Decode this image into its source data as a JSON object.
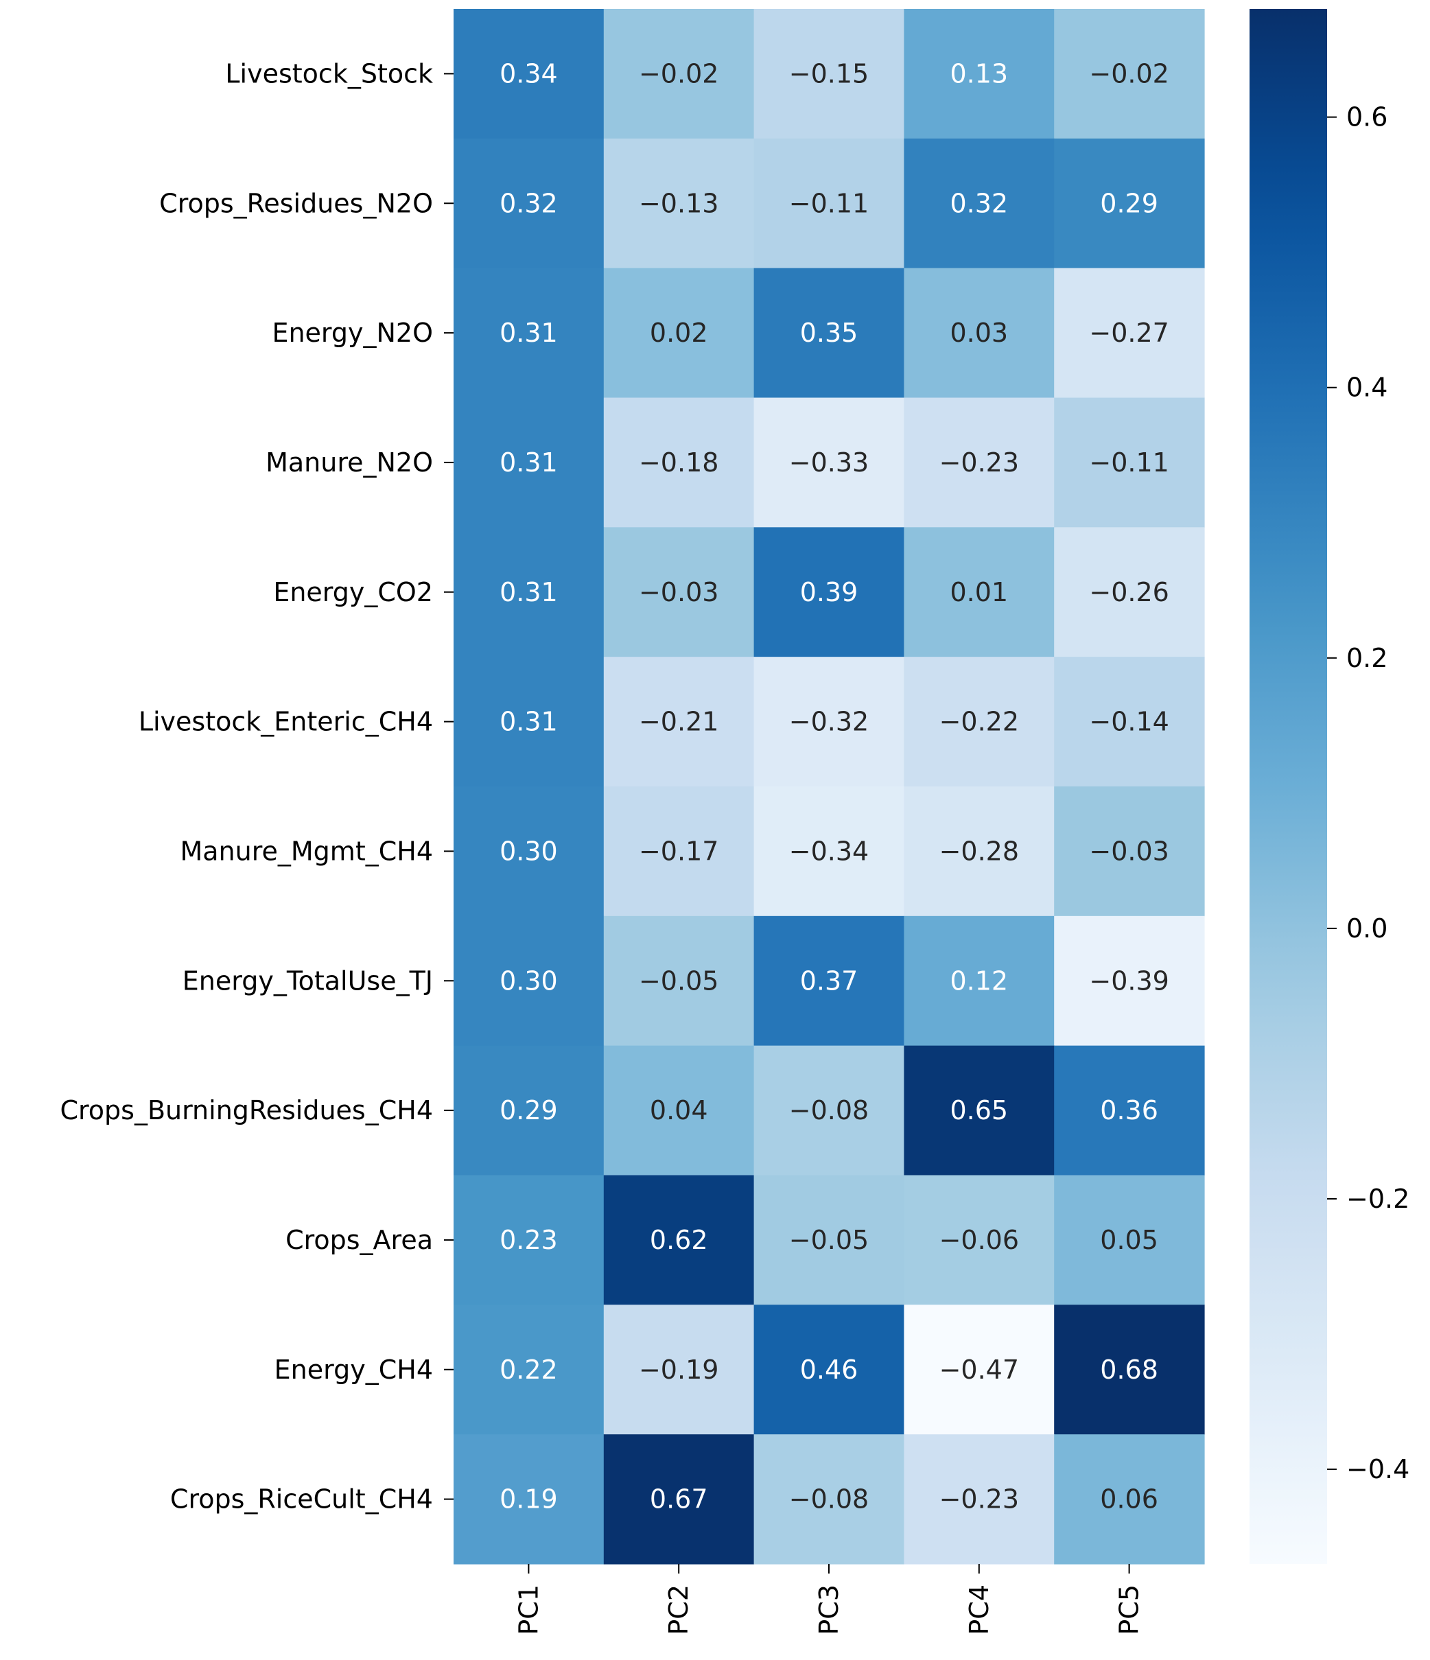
{
  "chart_data": {
    "type": "heatmap",
    "title": "",
    "xlabel": "",
    "ylabel": "",
    "colormap": "Blues",
    "vmin": -0.47,
    "vmax": 0.68,
    "columns": [
      "PC1",
      "PC2",
      "PC3",
      "PC4",
      "PC5"
    ],
    "rows": [
      "Livestock_Stock",
      "Crops_Residues_N2O",
      "Energy_N2O",
      "Manure_N2O",
      "Energy_CO2",
      "Livestock_Enteric_CH4",
      "Manure_Mgmt_CH4",
      "Energy_TotalUse_TJ",
      "Crops_BurningResidues_CH4",
      "Crops_Area",
      "Energy_CH4",
      "Crops_RiceCult_CH4"
    ],
    "values": [
      [
        0.34,
        -0.02,
        -0.15,
        0.13,
        -0.02
      ],
      [
        0.32,
        -0.13,
        -0.11,
        0.32,
        0.29
      ],
      [
        0.31,
        0.02,
        0.35,
        0.03,
        -0.27
      ],
      [
        0.31,
        -0.18,
        -0.33,
        -0.23,
        -0.11
      ],
      [
        0.31,
        -0.03,
        0.39,
        0.01,
        -0.26
      ],
      [
        0.31,
        -0.21,
        -0.32,
        -0.22,
        -0.14
      ],
      [
        0.3,
        -0.17,
        -0.34,
        -0.28,
        -0.03
      ],
      [
        0.3,
        -0.05,
        0.37,
        0.12,
        -0.39
      ],
      [
        0.29,
        0.04,
        -0.08,
        0.65,
        0.36
      ],
      [
        0.23,
        0.62,
        -0.05,
        -0.06,
        0.05
      ],
      [
        0.22,
        -0.19,
        0.46,
        -0.47,
        0.68
      ],
      [
        0.19,
        0.67,
        -0.08,
        -0.23,
        0.06
      ]
    ],
    "colorbar": {
      "ticks": [
        0.6,
        0.4,
        0.2,
        0.0,
        -0.2,
        -0.4
      ],
      "tick_labels": [
        "0.6",
        "0.4",
        "0.2",
        "0.0",
        "−0.2",
        "−0.4"
      ]
    },
    "legend": "colorbar-right"
  }
}
